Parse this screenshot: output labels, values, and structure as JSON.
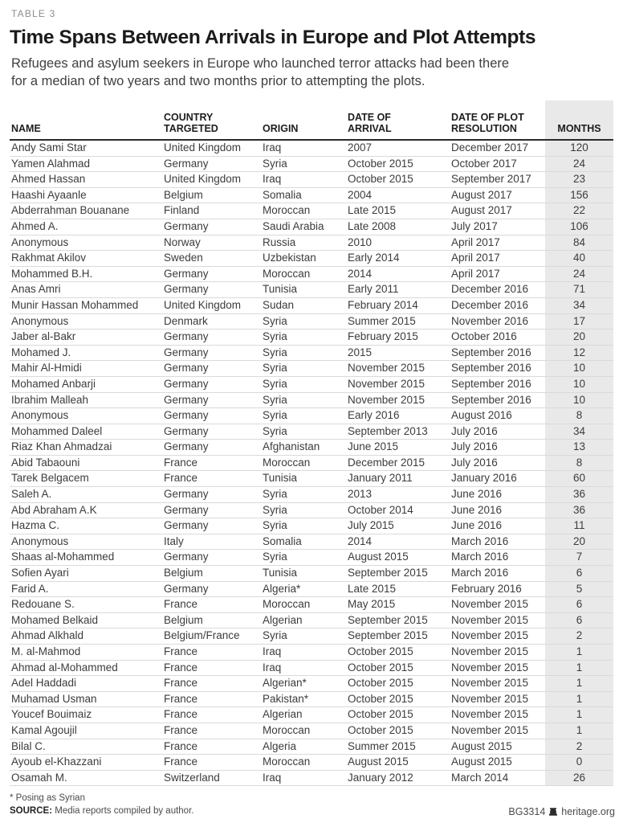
{
  "header": {
    "table_label": "TABLE 3",
    "title": "Time Spans Between Arrivals in Europe and Plot Attempts",
    "subtitle": "Refugees and asylum seekers in Europe who launched terror attacks had been there for a median of two years and two months prior to attempting the plots."
  },
  "table": {
    "headers": [
      {
        "label": "NAME"
      },
      {
        "label": "COUNTRY\nTARGETED"
      },
      {
        "label": "ORIGIN"
      },
      {
        "label": "DATE OF\nARRIVAL"
      },
      {
        "label": "DATE OF PLOT\nRESOLUTION"
      },
      {
        "label": "MONTHS"
      }
    ],
    "fields": [
      "name",
      "country-targeted",
      "origin",
      "date-of-arrival",
      "date-of-plot-resolution",
      "months"
    ],
    "rows": [
      [
        "Andy Sami Star",
        "United Kingdom",
        "Iraq",
        "2007",
        "December 2017",
        "120"
      ],
      [
        "Yamen Alahmad",
        "Germany",
        "Syria",
        "October 2015",
        "October 2017",
        "24"
      ],
      [
        "Ahmed Hassan",
        "United Kingdom",
        "Iraq",
        "October 2015",
        "September 2017",
        "23"
      ],
      [
        "Haashi Ayaanle",
        "Belgium",
        "Somalia",
        "2004",
        "August 2017",
        "156"
      ],
      [
        "Abderrahman Bouanane",
        "Finland",
        "Moroccan",
        "Late 2015",
        "August 2017",
        "22"
      ],
      [
        "Ahmed A.",
        "Germany",
        "Saudi Arabia",
        "Late 2008",
        "July 2017",
        "106"
      ],
      [
        "Anonymous",
        "Norway",
        "Russia",
        "2010",
        "April 2017",
        "84"
      ],
      [
        "Rakhmat Akilov",
        "Sweden",
        "Uzbekistan",
        "Early 2014",
        "April 2017",
        "40"
      ],
      [
        "Mohammed B.H.",
        "Germany",
        "Moroccan",
        "2014",
        "April 2017",
        "24"
      ],
      [
        "Anas Amri",
        "Germany",
        "Tunisia",
        "Early 2011",
        "December 2016",
        "71"
      ],
      [
        "Munir Hassan Mohammed",
        "United Kingdom",
        "Sudan",
        "February 2014",
        "December 2016",
        "34"
      ],
      [
        "Anonymous",
        "Denmark",
        "Syria",
        "Summer 2015",
        "November 2016",
        "17"
      ],
      [
        "Jaber al-Bakr",
        "Germany",
        "Syria",
        "February 2015",
        "October 2016",
        "20"
      ],
      [
        "Mohamed J.",
        "Germany",
        "Syria",
        "2015",
        "September 2016",
        "12"
      ],
      [
        "Mahir Al-Hmidi",
        "Germany",
        "Syria",
        "November 2015",
        "September 2016",
        "10"
      ],
      [
        "Mohamed Anbarji",
        "Germany",
        "Syria",
        "November 2015",
        "September 2016",
        "10"
      ],
      [
        "Ibrahim Malleah",
        "Germany",
        "Syria",
        "November 2015",
        "September 2016",
        "10"
      ],
      [
        "Anonymous",
        "Germany",
        "Syria",
        "Early 2016",
        "August 2016",
        "8"
      ],
      [
        "Mohammed Daleel",
        "Germany",
        "Syria",
        "September 2013",
        "July 2016",
        "34"
      ],
      [
        "Riaz Khan Ahmadzai",
        "Germany",
        "Afghanistan",
        "June 2015",
        "July 2016",
        "13"
      ],
      [
        "Abid Tabaouni",
        "France",
        "Moroccan",
        "December 2015",
        "July 2016",
        "8"
      ],
      [
        "Tarek Belgacem",
        "France",
        "Tunisia",
        "January 2011",
        "January 2016",
        "60"
      ],
      [
        "Saleh A.",
        "Germany",
        "Syria",
        "2013",
        "June 2016",
        "36"
      ],
      [
        "Abd Abraham A.K",
        "Germany",
        "Syria",
        "October 2014",
        "June 2016",
        "36"
      ],
      [
        "Hazma C.",
        "Germany",
        "Syria",
        "July 2015",
        "June 2016",
        "11"
      ],
      [
        "Anonymous",
        "Italy",
        "Somalia",
        "2014",
        "March 2016",
        "20"
      ],
      [
        "Shaas al-Mohammed",
        "Germany",
        "Syria",
        "August 2015",
        "March 2016",
        "7"
      ],
      [
        "Sofien Ayari",
        "Belgium",
        "Tunisia",
        "September 2015",
        "March 2016",
        "6"
      ],
      [
        "Farid A.",
        "Germany",
        "Algeria*",
        "Late 2015",
        "February 2016",
        "5"
      ],
      [
        "Redouane S.",
        "France",
        "Moroccan",
        "May 2015",
        "November 2015",
        "6"
      ],
      [
        "Mohamed Belkaid",
        "Belgium",
        "Algerian",
        "September 2015",
        "November 2015",
        "6"
      ],
      [
        "Ahmad Alkhald",
        "Belgium/France",
        "Syria",
        "September 2015",
        "November 2015",
        "2"
      ],
      [
        "M. al-Mahmod",
        "France",
        "Iraq",
        "October 2015",
        "November 2015",
        "1"
      ],
      [
        "Ahmad al-Mohammed",
        "France",
        "Iraq",
        "October 2015",
        "November 2015",
        "1"
      ],
      [
        "Adel Haddadi",
        "France",
        "Algerian*",
        "October 2015",
        "November 2015",
        "1"
      ],
      [
        "Muhamad Usman",
        "France",
        "Pakistan*",
        "October 2015",
        "November 2015",
        "1"
      ],
      [
        "Youcef Bouimaiz",
        "France",
        "Algerian",
        "October 2015",
        "November 2015",
        "1"
      ],
      [
        "Kamal Agoujil",
        "France",
        "Moroccan",
        "October 2015",
        "November 2015",
        "1"
      ],
      [
        "Bilal C.",
        "France",
        "Algeria",
        "Summer 2015",
        "August 2015",
        "2"
      ],
      [
        "Ayoub el-Khazzani",
        "France",
        "Moroccan",
        "August 2015",
        "August 2015",
        "0"
      ],
      [
        "Osamah M.",
        "Switzerland",
        "Iraq",
        "January 2012",
        "March 2014",
        "26"
      ]
    ]
  },
  "footer": {
    "footnote": "* Posing as Syrian",
    "source_label": "SOURCE:",
    "source_text": "Media reports compiled by author.",
    "publication_id": "BG3314",
    "website": "heritage.org",
    "logo_icon": "bell-icon"
  },
  "colors": {
    "months_band": "#e9e9e9",
    "header_rule": "#2b2b2b",
    "row_rule": "#dadada",
    "label_gray": "#8c8c8c",
    "title_black": "#1b1b1b"
  }
}
